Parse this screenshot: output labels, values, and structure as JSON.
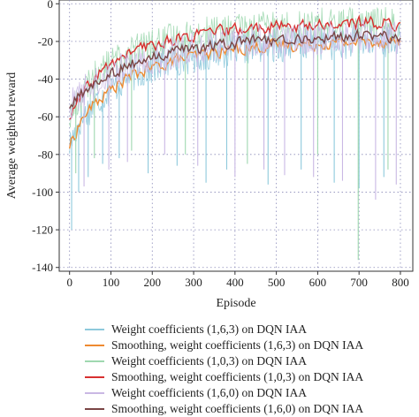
{
  "chart_data": {
    "type": "line",
    "xlabel": "Episode",
    "ylabel": "Average weighted reward",
    "xlim": [
      -25,
      830
    ],
    "ylim": [
      -142,
      2
    ],
    "xticks": [
      0,
      100,
      200,
      300,
      400,
      500,
      600,
      700,
      800
    ],
    "yticks": [
      0,
      -20,
      -40,
      -60,
      -80,
      -100,
      -120,
      -140
    ],
    "grid": true,
    "legend_position": "below",
    "series": [
      {
        "name": "Weight coefficients (1,6,3) on DQN IAA",
        "color": "#8ec9dc",
        "style": "raw",
        "x": [
          0,
          25,
          50,
          75,
          100,
          150,
          200,
          250,
          300,
          350,
          400,
          450,
          500,
          550,
          600,
          650,
          700,
          750,
          800
        ],
        "values": [
          -75,
          -62,
          -55,
          -50,
          -45,
          -38,
          -34,
          -30,
          -28,
          -26,
          -24,
          -23,
          -22,
          -22,
          -21,
          -21,
          -20,
          -20,
          -20
        ],
        "dips": [
          [
            5,
            -120
          ],
          [
            22,
            -100
          ],
          [
            45,
            -92
          ],
          [
            80,
            -85
          ],
          [
            120,
            -82
          ],
          [
            190,
            -90
          ],
          [
            260,
            -86
          ],
          [
            330,
            -95
          ],
          [
            380,
            -88
          ],
          [
            480,
            -96
          ],
          [
            560,
            -88
          ],
          [
            640,
            -95
          ],
          [
            700,
            -98
          ],
          [
            760,
            -92
          ]
        ]
      },
      {
        "name": "Smoothing, weight coefficients (1,6,3) on DQN IAA",
        "color": "#ee8a30",
        "style": "smooth",
        "x": [
          0,
          25,
          50,
          75,
          100,
          150,
          200,
          250,
          300,
          350,
          400,
          450,
          500,
          550,
          600,
          650,
          700,
          750,
          800
        ],
        "values": [
          -75,
          -62,
          -55,
          -50,
          -45,
          -38,
          -34,
          -30,
          -28,
          -26,
          -24,
          -23,
          -22,
          -22,
          -21,
          -21,
          -20,
          -20,
          -20
        ],
        "dips": []
      },
      {
        "name": "Weight coefficients (1,0,3) on DQN IAA",
        "color": "#9fd8b0",
        "style": "raw",
        "x": [
          0,
          25,
          50,
          75,
          100,
          150,
          200,
          250,
          300,
          350,
          400,
          450,
          500,
          550,
          600,
          650,
          700,
          750,
          800
        ],
        "values": [
          -60,
          -50,
          -42,
          -36,
          -32,
          -25,
          -22,
          -19,
          -17,
          -15,
          -14,
          -13,
          -12,
          -12,
          -11,
          -11,
          -10,
          -10,
          -11
        ],
        "dips": [
          [
            15,
            -90
          ],
          [
            60,
            -82
          ],
          [
            150,
            -78
          ],
          [
            280,
            -80
          ],
          [
            430,
            -85
          ],
          [
            600,
            -80
          ],
          [
            698,
            -136
          ],
          [
            770,
            -88
          ]
        ]
      },
      {
        "name": "Smoothing, weight coefficients (1,0,3) on DQN IAA",
        "color": "#d83030",
        "style": "smooth",
        "x": [
          0,
          25,
          50,
          75,
          100,
          150,
          200,
          250,
          300,
          350,
          400,
          450,
          500,
          550,
          600,
          650,
          700,
          750,
          800
        ],
        "values": [
          -60,
          -50,
          -42,
          -36,
          -32,
          -25,
          -22,
          -19,
          -17,
          -15,
          -14,
          -13,
          -12,
          -12,
          -11,
          -11,
          -10,
          -10,
          -11
        ],
        "dips": []
      },
      {
        "name": "Weight coefficients (1,6,0) on DQN IAA",
        "color": "#c9b8e4",
        "style": "raw",
        "x": [
          0,
          25,
          50,
          75,
          100,
          150,
          200,
          250,
          300,
          350,
          400,
          450,
          500,
          550,
          600,
          650,
          700,
          750,
          800
        ],
        "values": [
          -55,
          -48,
          -44,
          -40,
          -37,
          -32,
          -29,
          -26,
          -24,
          -22,
          -21,
          -20,
          -19,
          -19,
          -18,
          -18,
          -17,
          -17,
          -18
        ],
        "dips": [
          [
            35,
            -97
          ],
          [
            95,
            -88
          ],
          [
            140,
            -84
          ],
          [
            230,
            -80
          ],
          [
            310,
            -86
          ],
          [
            400,
            -92
          ],
          [
            470,
            -88
          ],
          [
            520,
            -91
          ],
          [
            590,
            -92
          ],
          [
            660,
            -94
          ],
          [
            740,
            -104
          ],
          [
            790,
            -96
          ]
        ]
      },
      {
        "name": "Smoothing, weight coefficients (1,6,0) on DQN IAA",
        "color": "#7a4545",
        "style": "smooth",
        "x": [
          0,
          25,
          50,
          75,
          100,
          150,
          200,
          250,
          300,
          350,
          400,
          450,
          500,
          550,
          600,
          650,
          700,
          750,
          800
        ],
        "values": [
          -55,
          -48,
          -44,
          -40,
          -37,
          -32,
          -29,
          -26,
          -24,
          -22,
          -21,
          -20,
          -19,
          -19,
          -18,
          -18,
          -17,
          -17,
          -18
        ],
        "dips": []
      }
    ]
  }
}
